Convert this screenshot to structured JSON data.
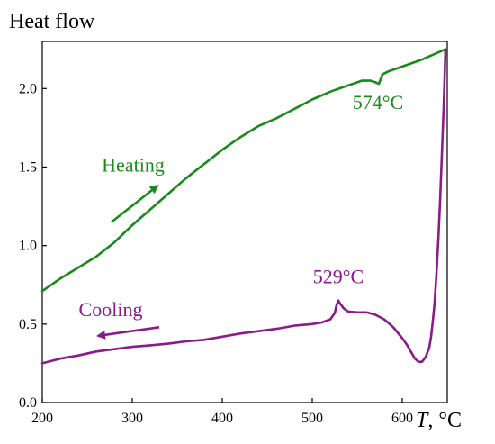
{
  "chart_data": {
    "type": "line",
    "ylabel": "Heat flow",
    "xlabel_var": "T",
    "xlabel_unit": ", °C",
    "xlim": [
      200,
      650
    ],
    "ylim": [
      0.0,
      2.3
    ],
    "x_ticks": [
      200,
      300,
      400,
      500,
      600
    ],
    "y_ticks": [
      0.0,
      0.5,
      1.0,
      1.5,
      2.0
    ],
    "y_tick_labels": [
      "0.0",
      "0.5",
      "1.0",
      "1.5",
      "2.0"
    ],
    "grid": false,
    "colors": {
      "heating": "#1a8a1a",
      "cooling": "#8b1a8b"
    },
    "series": [
      {
        "name": "Heating",
        "x": [
          200,
          220,
          240,
          260,
          280,
          300,
          320,
          340,
          360,
          380,
          400,
          420,
          440,
          460,
          480,
          500,
          520,
          540,
          555,
          565,
          570,
          574,
          578,
          585,
          600,
          620,
          640,
          648
        ],
        "y": [
          0.71,
          0.79,
          0.86,
          0.93,
          1.02,
          1.13,
          1.23,
          1.33,
          1.43,
          1.52,
          1.61,
          1.69,
          1.76,
          1.81,
          1.87,
          1.93,
          1.98,
          2.02,
          2.05,
          2.05,
          2.04,
          2.03,
          2.09,
          2.11,
          2.14,
          2.18,
          2.23,
          2.25
        ]
      },
      {
        "name": "Cooling",
        "x": [
          648,
          647,
          646,
          644,
          642,
          640,
          638,
          636,
          634,
          632,
          630,
          626,
          622,
          618,
          614,
          610,
          605,
          600,
          590,
          580,
          570,
          560,
          550,
          540,
          535,
          531,
          529,
          527,
          525,
          520,
          510,
          500,
          480,
          460,
          440,
          420,
          400,
          380,
          360,
          340,
          320,
          300,
          280,
          260,
          240,
          220,
          200
        ],
        "y": [
          2.25,
          2.06,
          1.88,
          1.58,
          1.28,
          1.03,
          0.82,
          0.64,
          0.52,
          0.42,
          0.35,
          0.29,
          0.26,
          0.26,
          0.28,
          0.32,
          0.37,
          0.41,
          0.48,
          0.53,
          0.56,
          0.575,
          0.575,
          0.58,
          0.6,
          0.63,
          0.65,
          0.62,
          0.57,
          0.53,
          0.51,
          0.5,
          0.49,
          0.47,
          0.455,
          0.44,
          0.42,
          0.4,
          0.39,
          0.375,
          0.365,
          0.355,
          0.34,
          0.325,
          0.3,
          0.28,
          0.25
        ]
      }
    ],
    "annotations": [
      {
        "text": "574°C",
        "x": 573,
        "y": 1.87,
        "color": "heating"
      },
      {
        "text": "529°C",
        "x": 529,
        "y": 0.76,
        "color": "cooling"
      },
      {
        "text": "Heating",
        "x": 301,
        "y": 1.47,
        "color": "heating"
      },
      {
        "text": "Cooling",
        "x": 276,
        "y": 0.55,
        "color": "cooling"
      }
    ],
    "arrows": [
      {
        "series": "Heating",
        "x1": 277,
        "y1": 1.15,
        "x2": 328,
        "y2": 1.38,
        "color": "heating"
      },
      {
        "series": "Cooling",
        "x1": 330,
        "y1": 0.48,
        "x2": 262,
        "y2": 0.425,
        "color": "cooling"
      }
    ]
  }
}
